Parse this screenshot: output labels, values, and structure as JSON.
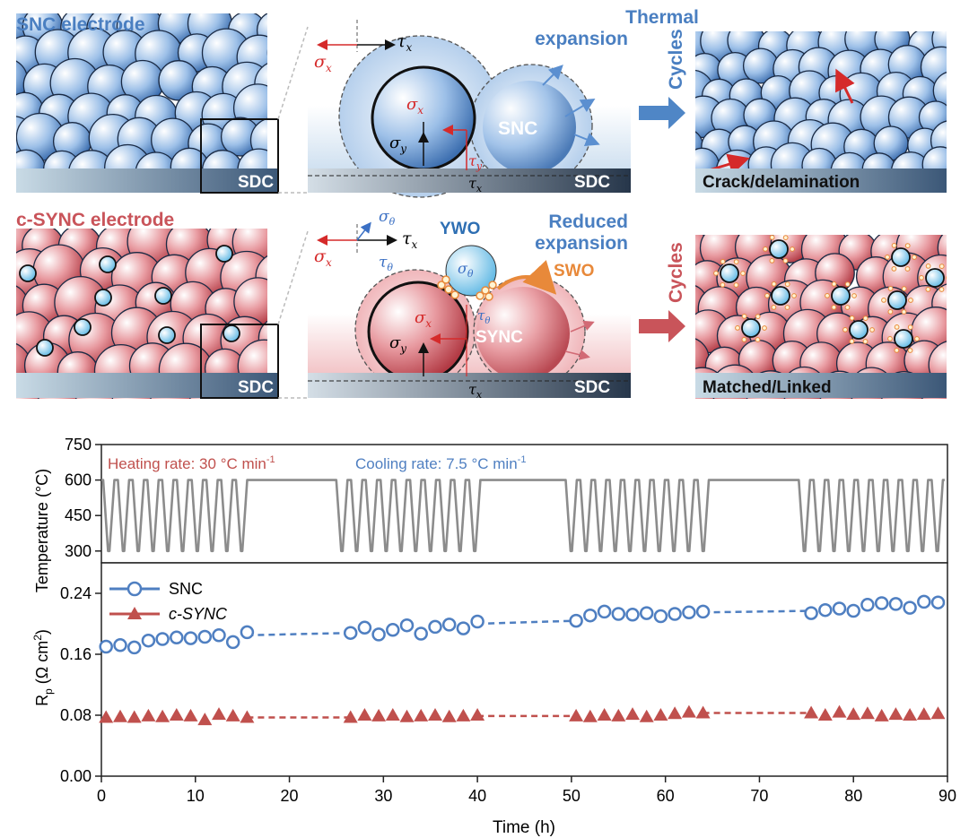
{
  "schematic": {
    "row1": {
      "electrode_title": "SNC electrode",
      "substrate_label": "SDC",
      "zoom_substrate_label": "SDC",
      "particle_label": "SNC",
      "expansion_label_line1": "Thermal",
      "expansion_label_line2": "expansion",
      "cycles_label": "Cycles",
      "result_label": "Crack/delamination"
    },
    "row2": {
      "electrode_title": "c-SYNC electrode",
      "substrate_label": "SDC",
      "zoom_substrate_label": "SDC",
      "particle_label": "SYNC",
      "small_particle_label": "YWO",
      "interphase_label": "SWO",
      "expansion_label_line1": "Reduced",
      "expansion_label_line2": "expansion",
      "cycles_label": "Cycles",
      "result_label": "Matched/Linked"
    },
    "colors": {
      "snc_blue": "#4f86c6",
      "sync_red": "#c9545a",
      "ywo_blue": "#8fd0ef",
      "swo_orange": "#e8893a",
      "substrate_gray": "#5f7590"
    }
  },
  "chart_data": [
    {
      "type": "line",
      "title": "",
      "xlabel": "",
      "ylabel": "Temperature (°C)",
      "ylim": [
        250,
        750
      ],
      "xlim": [
        0,
        90
      ],
      "yticks": [
        "300",
        "450",
        "600",
        "750"
      ],
      "annotations": {
        "heating": "Heating rate: 30 °C min",
        "heating_sup": "-1",
        "cooling": "Cooling rate: 7.5 °C min",
        "cooling_sup": "-1"
      },
      "temperature_profile": {
        "high": 600,
        "low": 300,
        "cycle_blocks_h": [
          [
            0,
            15.7
          ],
          [
            24.8,
            40.5
          ],
          [
            49.2,
            64.8
          ],
          [
            74.0,
            89.7
          ]
        ],
        "cycles_per_block": 10,
        "hold_blocks_h": [
          [
            15.7,
            24.8
          ],
          [
            40.5,
            49.2
          ],
          [
            64.8,
            74.0
          ]
        ]
      },
      "colors": {
        "line": "#8c8c8c"
      }
    },
    {
      "type": "line",
      "title": "",
      "xlabel": "Time (h)",
      "ylabel": "R",
      "ylabel_sub": "p",
      "ylabel_units": " (Ω cm",
      "ylabel_units_sup": "2",
      "ylabel_units_end": ")",
      "xlim": [
        0,
        90
      ],
      "ylim": [
        0.0,
        0.28
      ],
      "xticks": [
        "0",
        "10",
        "20",
        "30",
        "40",
        "50",
        "60",
        "70",
        "80",
        "90"
      ],
      "yticks": [
        "0.00",
        "0.08",
        "0.16",
        "0.24"
      ],
      "legend": [
        "SNC",
        "c-SYNC"
      ],
      "legend_placement": "top-left",
      "series": [
        {
          "name": "SNC",
          "marker": "open-circle",
          "color": "#4f7fc1",
          "x": [
            0.5,
            2.0,
            3.5,
            5.0,
            6.5,
            8.0,
            9.5,
            11.0,
            12.5,
            14.0,
            15.5,
            26.5,
            28.0,
            29.5,
            31.0,
            32.5,
            34.0,
            35.5,
            37.0,
            38.5,
            40.0,
            50.5,
            52.0,
            53.5,
            55.0,
            56.5,
            58.0,
            59.5,
            61.0,
            62.5,
            64.0,
            75.5,
            77.0,
            78.5,
            80.0,
            81.5,
            83.0,
            84.5,
            86.0,
            87.5,
            89.0
          ],
          "values": [
            0.17,
            0.172,
            0.169,
            0.178,
            0.18,
            0.182,
            0.181,
            0.183,
            0.185,
            0.176,
            0.189,
            0.188,
            0.195,
            0.186,
            0.192,
            0.198,
            0.187,
            0.196,
            0.199,
            0.194,
            0.203,
            0.204,
            0.211,
            0.216,
            0.213,
            0.212,
            0.214,
            0.21,
            0.213,
            0.215,
            0.216,
            0.214,
            0.218,
            0.22,
            0.217,
            0.225,
            0.227,
            0.226,
            0.221,
            0.229,
            0.228
          ],
          "trend_segments": [
            [
              15.5,
              0.185,
              26.5,
              0.188
            ],
            [
              40.0,
              0.2,
              50.5,
              0.204
            ],
            [
              64.0,
              0.215,
              75.5,
              0.217
            ]
          ]
        },
        {
          "name": "c-SYNC",
          "marker": "filled-triangle",
          "color": "#c0504d",
          "x": [
            0.5,
            2.0,
            3.5,
            5.0,
            6.5,
            8.0,
            9.5,
            11.0,
            12.5,
            14.0,
            15.5,
            26.5,
            28.0,
            29.5,
            31.0,
            32.5,
            34.0,
            35.5,
            37.0,
            38.5,
            40.0,
            50.5,
            52.0,
            53.5,
            55.0,
            56.5,
            58.0,
            59.5,
            61.0,
            62.5,
            64.0,
            75.5,
            77.0,
            78.5,
            80.0,
            81.5,
            83.0,
            84.5,
            86.0,
            87.5,
            89.0
          ],
          "values": [
            0.077,
            0.078,
            0.077,
            0.079,
            0.078,
            0.08,
            0.079,
            0.074,
            0.081,
            0.079,
            0.077,
            0.077,
            0.08,
            0.079,
            0.08,
            0.078,
            0.079,
            0.08,
            0.078,
            0.079,
            0.08,
            0.079,
            0.078,
            0.08,
            0.079,
            0.081,
            0.078,
            0.08,
            0.082,
            0.084,
            0.083,
            0.083,
            0.08,
            0.084,
            0.081,
            0.082,
            0.079,
            0.081,
            0.08,
            0.081,
            0.082
          ],
          "trend_segments": [
            [
              15.5,
              0.077,
              26.5,
              0.077
            ],
            [
              40.0,
              0.079,
              50.5,
              0.079
            ],
            [
              64.0,
              0.083,
              75.5,
              0.083
            ]
          ]
        }
      ]
    }
  ]
}
